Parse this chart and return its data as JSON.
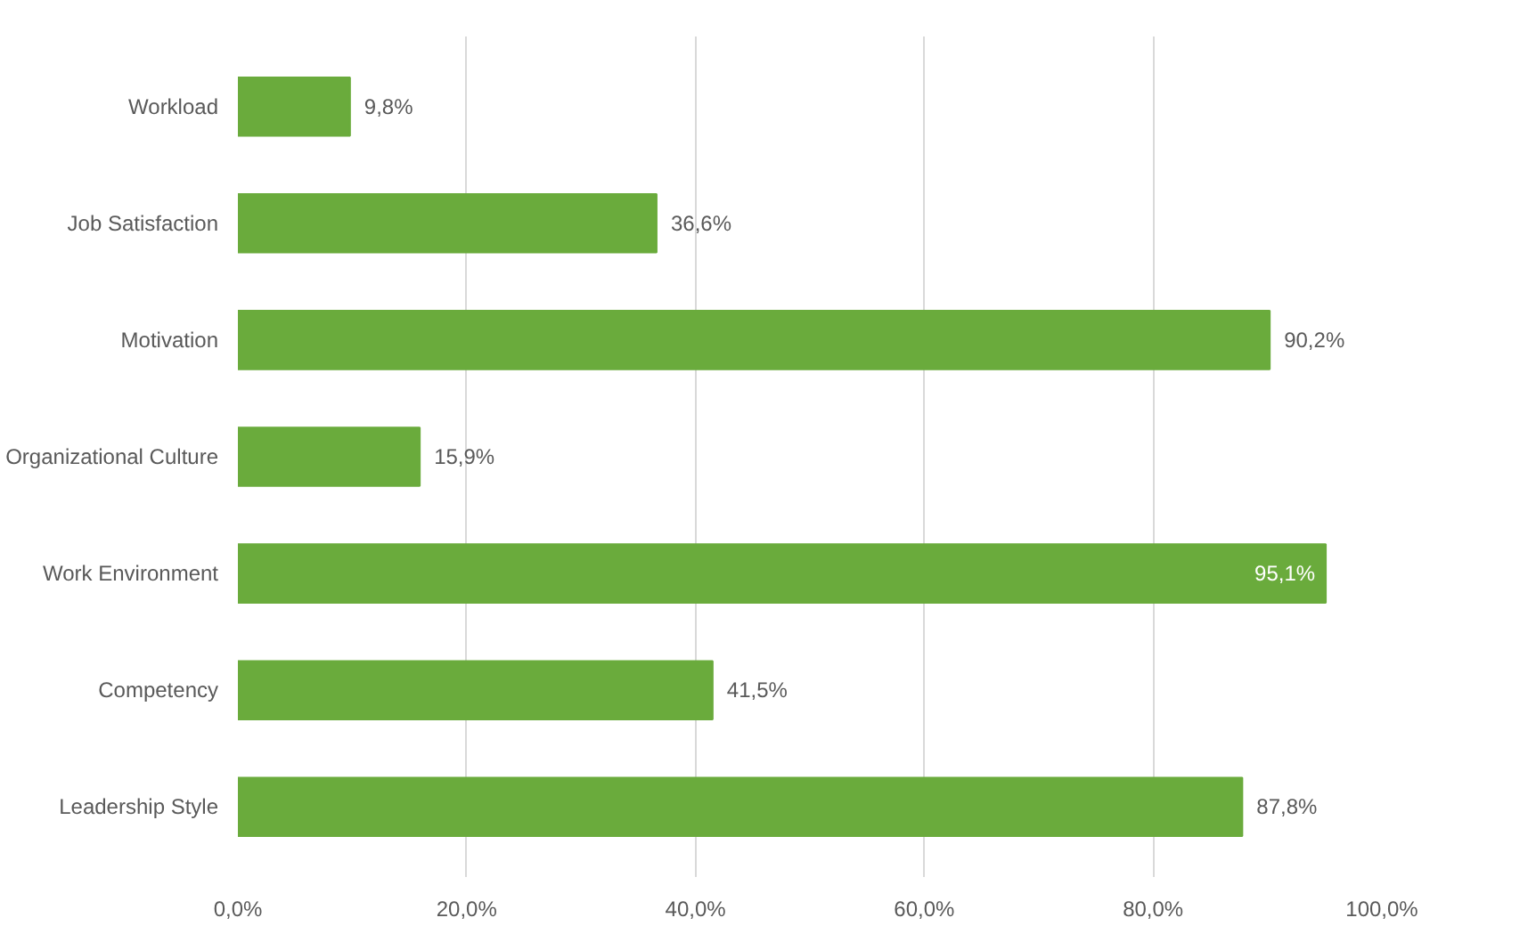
{
  "chart_data": {
    "type": "bar",
    "orientation": "horizontal",
    "categories": [
      "Workload",
      "Job Satisfaction",
      "Motivation",
      "Organizational Culture",
      "Work Environment",
      "Competency",
      "Leadership Style"
    ],
    "values": [
      9.8,
      36.6,
      90.2,
      15.9,
      95.1,
      41.5,
      87.8
    ],
    "value_labels": [
      "9,8%",
      "36,6%",
      "90,2%",
      "15,9%",
      "95,1%",
      "41,5%",
      "87,8%"
    ],
    "color": "#6aab3c",
    "xlim": [
      0,
      100
    ],
    "xticks": [
      {
        "value": 0,
        "label": "0,0%"
      },
      {
        "value": 20,
        "label": "20,0%"
      },
      {
        "value": 40,
        "label": "40,0%"
      },
      {
        "value": 60,
        "label": "60,0%"
      },
      {
        "value": 80,
        "label": "80,0%"
      },
      {
        "value": 100,
        "label": "100,0%"
      }
    ],
    "grid": "x"
  }
}
